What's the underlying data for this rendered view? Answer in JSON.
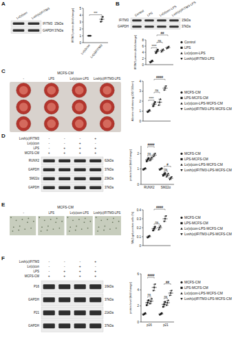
{
  "chart_data": [
    {
      "type": "dot",
      "y_label": "IFITM3 protein (fold change)",
      "categories": [
        "Lv(o)con",
        "Lv(o)IFITM3"
      ],
      "series": [
        {
          "color": "#1a1a1a",
          "marker": "circle",
          "values": [
            1,
            3.4
          ],
          "errors": [
            0,
            0.35
          ],
          "points": [
            [
              1,
              1,
              1
            ],
            [
              3.05,
              3.4,
              3.75
            ]
          ]
        }
      ],
      "ylim": [
        0,
        5
      ],
      "yticks": [
        0,
        1,
        2,
        3,
        4,
        5
      ],
      "annotations": [
        "***"
      ]
    },
    {
      "type": "dot",
      "y_label": "IFITM3 protein (fold change)",
      "categories": [
        null
      ],
      "legend": "right",
      "series": [
        {
          "name": "Control",
          "color": "#1a1a1a",
          "marker": "circle",
          "values": [
            1
          ],
          "errors": [
            0.3
          ],
          "points": [
            [
              0.7,
              1,
              1.3
            ]
          ]
        },
        {
          "name": "LPS",
          "color": "#1a1a1a",
          "marker": "square",
          "values": [
            4.3
          ],
          "errors": [
            0.5
          ],
          "points": [
            [
              3.8,
              4.3,
              4.8
            ]
          ]
        },
        {
          "name": "Lv(o)con-LPS",
          "color": "#1a1a1a",
          "marker": "triangle",
          "values": [
            4.6
          ],
          "errors": [
            0.4
          ],
          "points": [
            [
              4.2,
              4.6,
              5
            ]
          ]
        },
        {
          "name": "Lvsh(o)IFITM3-LPS",
          "color": "#1a1a1a",
          "marker": "triangle-down",
          "values": [
            5.5
          ],
          "errors": [
            0.3
          ],
          "points": [
            [
              5.2,
              5.5,
              5.8
            ]
          ]
        }
      ],
      "ylim": [
        0,
        8
      ],
      "yticks": [
        0,
        2,
        4,
        6,
        8
      ],
      "annotations": [
        "****",
        "ns",
        "##"
      ]
    },
    {
      "type": "dot",
      "y_label": "Alizarin red staining (OD 560nm)",
      "categories": [
        null
      ],
      "legend": "right",
      "series": [
        {
          "name": "MCFS-CM",
          "color": "#1a1a1a",
          "marker": "circle",
          "values": [
            1
          ],
          "errors": [
            0.1
          ],
          "points": [
            [
              0.9,
              1,
              1.1
            ]
          ]
        },
        {
          "name": "LPS-MCFS-CM",
          "color": "#1a1a1a",
          "marker": "square",
          "values": [
            1.7
          ],
          "errors": [
            0.2
          ],
          "points": [
            [
              1.5,
              1.7,
              1.9
            ]
          ]
        },
        {
          "name": "Lv(o)con-LPS-MCFS-CM",
          "color": "#1a1a1a",
          "marker": "triangle",
          "values": [
            1.9
          ],
          "errors": [
            0.3
          ],
          "points": [
            [
              1.6,
              1.9,
              2.2
            ]
          ]
        },
        {
          "name": "Lvsh(o)IFITM3-LPS-MCFS-CM",
          "color": "#1a1a1a",
          "marker": "triangle-down",
          "values": [
            3.3
          ],
          "errors": [
            0.2
          ],
          "points": [
            [
              3.1,
              3.3,
              3.5
            ]
          ]
        }
      ],
      "ylim": [
        0,
        4
      ],
      "yticks": [
        0,
        1,
        2,
        3,
        4
      ],
      "annotations": [
        "****",
        "ns",
        "####"
      ]
    },
    {
      "type": "dot",
      "y_label": "protein level (fold change)",
      "categories": [
        "RUNX2",
        "SM22α"
      ],
      "legend": "right",
      "series": [
        {
          "name": "MCFS-CM",
          "color": "#1a1a1a",
          "marker": "circle",
          "values": [
            1,
            1
          ],
          "errors": [
            0.05,
            0.05
          ],
          "points": [
            [
              0.95,
              1,
              1.05
            ],
            [
              0.95,
              1,
              1.05
            ]
          ]
        },
        {
          "name": "LPS-MCFS-CM",
          "color": "#1a1a1a",
          "marker": "square",
          "values": [
            1.6,
            0.65
          ],
          "errors": [
            0.1,
            0.08
          ],
          "points": [
            [
              1.5,
              1.6,
              1.7
            ],
            [
              0.57,
              0.65,
              0.73
            ]
          ]
        },
        {
          "name": "Lv(o)con-LPS-MCFS-CM",
          "color": "#1a1a1a",
          "marker": "triangle",
          "values": [
            1.65,
            0.6
          ],
          "errors": [
            0.1,
            0.1
          ],
          "points": [
            [
              1.55,
              1.65,
              1.75
            ],
            [
              0.5,
              0.6,
              0.7
            ]
          ]
        },
        {
          "name": "Lvsh(o)IFITM3-LPS-MCFS-CM",
          "color": "#1a1a1a",
          "marker": "triangle-down",
          "values": [
            1.9,
            0.4
          ],
          "errors": [
            0.1,
            0.08
          ],
          "points": [
            [
              1.8,
              1.9,
              2
            ],
            [
              0.32,
              0.4,
              0.48
            ]
          ]
        }
      ],
      "ylim": [
        0,
        2.5
      ],
      "yticks": [
        0,
        1,
        2
      ],
      "annotations": [
        "####",
        "ns",
        "#",
        "ns"
      ]
    },
    {
      "type": "dot",
      "y_label": "SA-β-gal positive cells (%)",
      "categories": [
        null
      ],
      "legend": "right",
      "series": [
        {
          "name": "MCFS-CM",
          "color": "#1a1a1a",
          "marker": "circle",
          "values": [
            0.1
          ],
          "errors": [
            0.01
          ],
          "points": [
            [
              0.09,
              0.1,
              0.11
            ]
          ]
        },
        {
          "name": "LPS-MCFS-CM",
          "color": "#1a1a1a",
          "marker": "square",
          "values": [
            0.19
          ],
          "errors": [
            0.02
          ],
          "points": [
            [
              0.17,
              0.19,
              0.21
            ]
          ]
        },
        {
          "name": "Lv(o)con-LPS-MCFS-CM",
          "color": "#1a1a1a",
          "marker": "triangle",
          "values": [
            0.2
          ],
          "errors": [
            0.02
          ],
          "points": [
            [
              0.18,
              0.2,
              0.22
            ]
          ]
        },
        {
          "name": "Lvsh(o)IFITM3-LPS-MCFS-CM",
          "color": "#1a1a1a",
          "marker": "triangle-down",
          "values": [
            0.3
          ],
          "errors": [
            0.03
          ],
          "points": [
            [
              0.27,
              0.3,
              0.33
            ]
          ]
        }
      ],
      "ylim": [
        0,
        0.4
      ],
      "yticks": [
        0,
        0.1,
        0.2,
        0.3,
        0.4
      ],
      "annotations": [
        "####",
        "ns"
      ]
    },
    {
      "type": "dot",
      "y_label": "protein level (fold change)",
      "categories": [
        "p16",
        "p21"
      ],
      "legend": "right",
      "series": [
        {
          "name": "MCFS-CM",
          "color": "#1a1a1a",
          "marker": "circle",
          "values": [
            1,
            1
          ],
          "errors": [
            0.1,
            0.1
          ],
          "points": [
            [
              0.9,
              1,
              1.1
            ],
            [
              0.9,
              1,
              1.1
            ]
          ]
        },
        {
          "name": "LPS-MCFS-CM",
          "color": "#1a1a1a",
          "marker": "square",
          "values": [
            2.4,
            2.2
          ],
          "errors": [
            0.3,
            0.3
          ],
          "points": [
            [
              2.1,
              2.4,
              2.7
            ],
            [
              1.9,
              2.2,
              2.5
            ]
          ]
        },
        {
          "name": "Lv(o)con-LPS-MCFS-CM",
          "color": "#1a1a1a",
          "marker": "triangle",
          "values": [
            2.6,
            2.4
          ],
          "errors": [
            0.3,
            0.3
          ],
          "points": [
            [
              2.3,
              2.6,
              2.9
            ],
            [
              2.1,
              2.4,
              2.7
            ]
          ]
        },
        {
          "name": "Lvsh(o)IFITM3-LPS-MCFS-CM",
          "color": "#1a1a1a",
          "marker": "triangle-down",
          "values": [
            4.3,
            3.6
          ],
          "errors": [
            0.4,
            0.3
          ],
          "points": [
            [
              3.9,
              4.3,
              4.7
            ],
            [
              3.3,
              3.6,
              3.9
            ]
          ]
        }
      ],
      "ylim": [
        0,
        6
      ],
      "yticks": [
        0,
        2,
        4,
        6
      ],
      "annotations": [
        "####",
        "ns",
        "##",
        "ns"
      ]
    }
  ],
  "panels": [
    {
      "letter": "A",
      "blot": {
        "lanes": [
          "Lv(o)con",
          "Lvsh(o)IFITM3"
        ],
        "rows": [
          {
            "label": "IFITM3",
            "size": "15kDa"
          },
          {
            "label": "GAPDH",
            "size": "37kDa"
          }
        ]
      }
    },
    {
      "letter": "B",
      "blot": {
        "lanes": [
          "Control",
          "LPS",
          "Lv(o)con-LPS",
          "Lvsh(o)IFITM3-LPS"
        ],
        "rows": [
          {
            "label": "IFITM3",
            "size": "15kDa"
          },
          {
            "label": "GAPDH",
            "size": "37kDa"
          }
        ]
      }
    },
    {
      "letter": "C",
      "image": {
        "title": "MCFS-CM",
        "lanes": [
          "-",
          "LPS",
          "Lv(o)con-LPS",
          "Lvsh(o)IFITM3-LPS"
        ]
      }
    },
    {
      "letter": "D",
      "blot": {
        "treatments": [
          {
            "label": "Lvsh(o)IFITM3",
            "signs": [
              "-",
              "-",
              "-",
              "+"
            ]
          },
          {
            "label": "Lv(o)con",
            "signs": [
              "-",
              "-",
              "+",
              "-"
            ]
          },
          {
            "label": "LPS",
            "signs": [
              "-",
              "+",
              "+",
              "+"
            ]
          },
          {
            "label": "MCFS-CM",
            "signs": [
              "+",
              "+",
              "+",
              "+"
            ]
          }
        ],
        "rows": [
          {
            "label": "RUNX2",
            "size": "62kDa"
          },
          {
            "label": "GAPDH",
            "size": "37kDa"
          },
          {
            "label": "SM22α",
            "size": "23kDa"
          },
          {
            "label": "GAPDH",
            "size": "37kDa"
          }
        ]
      }
    },
    {
      "letter": "E",
      "image": {
        "title": "MCFS-CM",
        "lanes": [
          "-",
          "LPS",
          "Lv(o)con-LPS",
          "Lvsh(o)IFITM3-LPS"
        ]
      }
    },
    {
      "letter": "F",
      "blot": {
        "treatments": [
          {
            "label": "Lvsh(o)IFITM3",
            "signs": [
              "-",
              "-",
              "-",
              "+"
            ]
          },
          {
            "label": "Lv(o)con",
            "signs": [
              "-",
              "-",
              "+",
              "-"
            ]
          },
          {
            "label": "LPS",
            "signs": [
              "-",
              "+",
              "+",
              "+"
            ]
          },
          {
            "label": "MCFS-CM",
            "signs": [
              "+",
              "+",
              "+",
              "+"
            ]
          }
        ],
        "rows": [
          {
            "label": "P16",
            "size": "16kDa"
          },
          {
            "label": "GAPDH",
            "size": "37kDa"
          },
          {
            "label": "P21",
            "size": "21kDa"
          },
          {
            "label": "GAPDH",
            "size": "37kDa"
          }
        ]
      }
    }
  ]
}
